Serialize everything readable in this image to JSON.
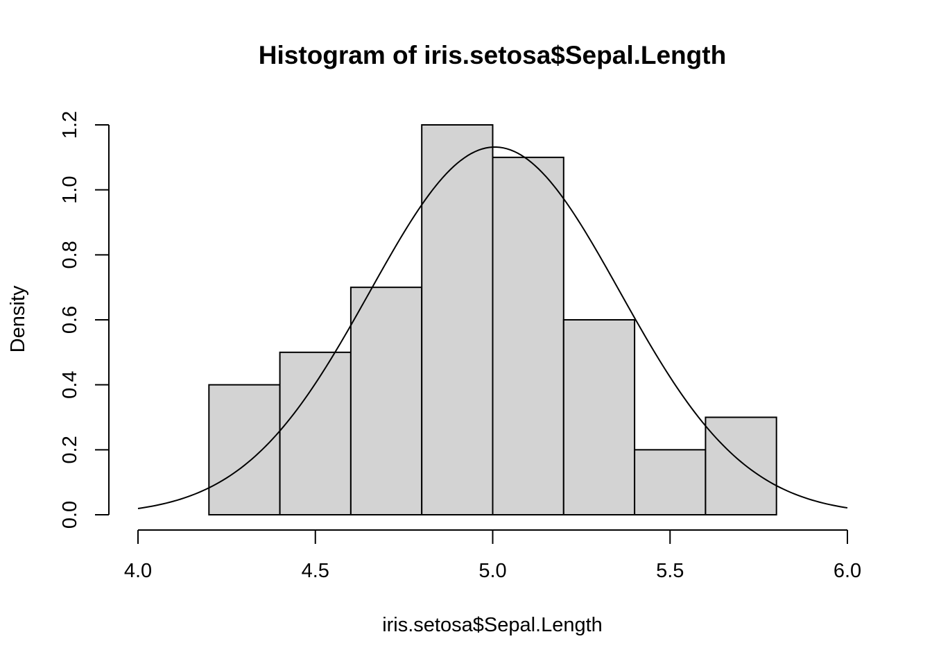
{
  "chart_data": {
    "type": "bar",
    "title": "Histogram of iris.setosa$Sepal.Length",
    "xlabel": "iris.setosa$Sepal.Length",
    "ylabel": "Density",
    "bins": [
      {
        "from": 4.2,
        "to": 4.4,
        "density": 0.4
      },
      {
        "from": 4.4,
        "to": 4.6,
        "density": 0.5
      },
      {
        "from": 4.6,
        "to": 4.8,
        "density": 0.7
      },
      {
        "from": 4.8,
        "to": 5.0,
        "density": 1.2
      },
      {
        "from": 5.0,
        "to": 5.2,
        "density": 1.1
      },
      {
        "from": 5.2,
        "to": 5.4,
        "density": 0.6
      },
      {
        "from": 5.4,
        "to": 5.6,
        "density": 0.2
      },
      {
        "from": 5.6,
        "to": 5.8,
        "density": 0.3
      }
    ],
    "density_curve": {
      "type": "normal",
      "mean": 5.006,
      "sd": 0.3525,
      "x_range": [
        4.0,
        6.0
      ]
    },
    "xlim": [
      4.0,
      6.0
    ],
    "ylim": [
      0,
      1.2
    ],
    "x_ticks": [
      "4.0",
      "4.5",
      "5.0",
      "5.5",
      "6.0"
    ],
    "y_ticks": [
      "0.0",
      "0.2",
      "0.4",
      "0.6",
      "0.8",
      "1.0",
      "1.2"
    ],
    "grid": false,
    "colors": {
      "bar_fill": "#d3d3d3",
      "bar_stroke": "#000000",
      "curve": "#000000"
    }
  }
}
